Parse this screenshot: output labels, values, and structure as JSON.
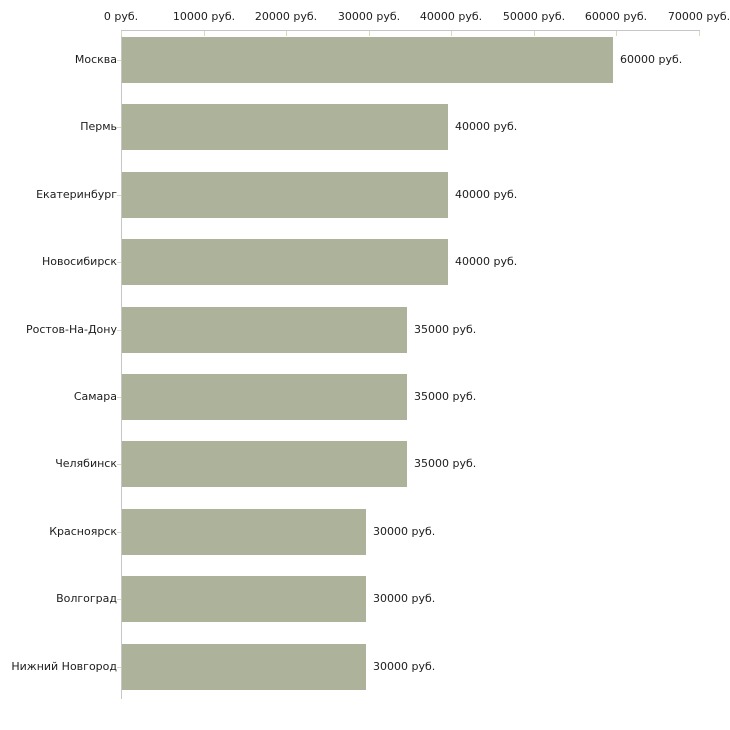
{
  "chart_data": {
    "type": "bar",
    "orientation": "horizontal",
    "title": "",
    "xlabel": "",
    "ylabel": "",
    "unit": "руб.",
    "categories": [
      "Москва",
      "Пермь",
      "Екатеринбург",
      "Новосибирск",
      "Ростов-На-Дону",
      "Самара",
      "Челябинск",
      "Красноярск",
      "Волгоград",
      "Нижний Новгород"
    ],
    "values": [
      60000,
      40000,
      40000,
      40000,
      35000,
      35000,
      35000,
      30000,
      30000,
      30000
    ],
    "bar_value_labels": [
      "60000 руб.",
      "40000 руб.",
      "40000 руб.",
      "40000 руб.",
      "35000 руб.",
      "35000 руб.",
      "35000 руб.",
      "30000 руб.",
      "30000 руб.",
      "30000 руб."
    ],
    "x_axis": {
      "position": "top",
      "range": [
        0,
        70000
      ],
      "ticks": [
        0,
        10000,
        20000,
        30000,
        40000,
        50000,
        60000,
        70000
      ],
      "tick_labels": [
        "0 руб.",
        "10000 руб.",
        "20000 руб.",
        "30000 руб.",
        "40000 руб.",
        "50000 руб.",
        "60000 руб.",
        "70000 руб."
      ]
    },
    "legend": null,
    "grid": false,
    "colors": {
      "bar": "#adb39a",
      "axis_line": "#c6c6c6",
      "tick": "#d9dab7",
      "text": "#1d1d1d",
      "background": "#ffffff"
    }
  }
}
